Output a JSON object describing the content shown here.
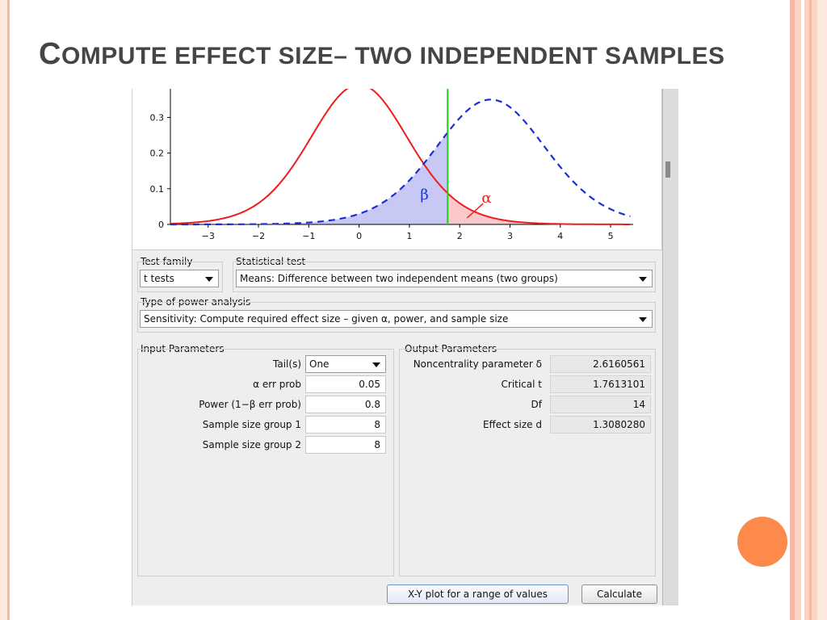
{
  "slide": {
    "title_first": "C",
    "title_rest": "OMPUTE EFFECT SIZE– TWO INDEPENDENT SAMPLES"
  },
  "plot": {
    "y_ticks": [
      "0.3",
      "0.2",
      "0.1",
      "0"
    ],
    "x_ticks": [
      "−3",
      "−2",
      "−1",
      "0",
      "1",
      "2",
      "3",
      "4",
      "5"
    ],
    "beta_label": "β",
    "alpha_label": "α",
    "colors": {
      "null_curve": "#ee1c1c",
      "alt_curve": "#1a2fd6",
      "critical": "#22cc22",
      "beta_fill": "#c8c8f4",
      "alpha_fill": "#f9c8c8"
    }
  },
  "test_family": {
    "label": "Test family",
    "value": "t tests"
  },
  "statistical_test": {
    "label": "Statistical test",
    "value": "Means: Difference between two independent means (two groups)"
  },
  "power_analysis": {
    "label": "Type of power analysis",
    "value": "Sensitivity: Compute required effect size – given α, power, and sample size"
  },
  "input_params": {
    "title": "Input Parameters",
    "tails": {
      "label": "Tail(s)",
      "value": "One"
    },
    "alpha": {
      "label": "α err prob",
      "value": "0.05"
    },
    "power": {
      "label": "Power (1−β err prob)",
      "value": "0.8"
    },
    "n1": {
      "label": "Sample size group 1",
      "value": "8"
    },
    "n2": {
      "label": "Sample size group 2",
      "value": "8"
    }
  },
  "output_params": {
    "title": "Output Parameters",
    "noncentrality": {
      "label": "Noncentrality parameter δ",
      "value": "2.6160561"
    },
    "critical_t": {
      "label": "Critical t",
      "value": "1.7613101"
    },
    "df": {
      "label": "Df",
      "value": "14"
    },
    "effect_size": {
      "label": "Effect size d",
      "value": "1.3080280"
    }
  },
  "buttons": {
    "xy_plot": "X-Y plot for a range of values",
    "calculate": "Calculate"
  }
}
